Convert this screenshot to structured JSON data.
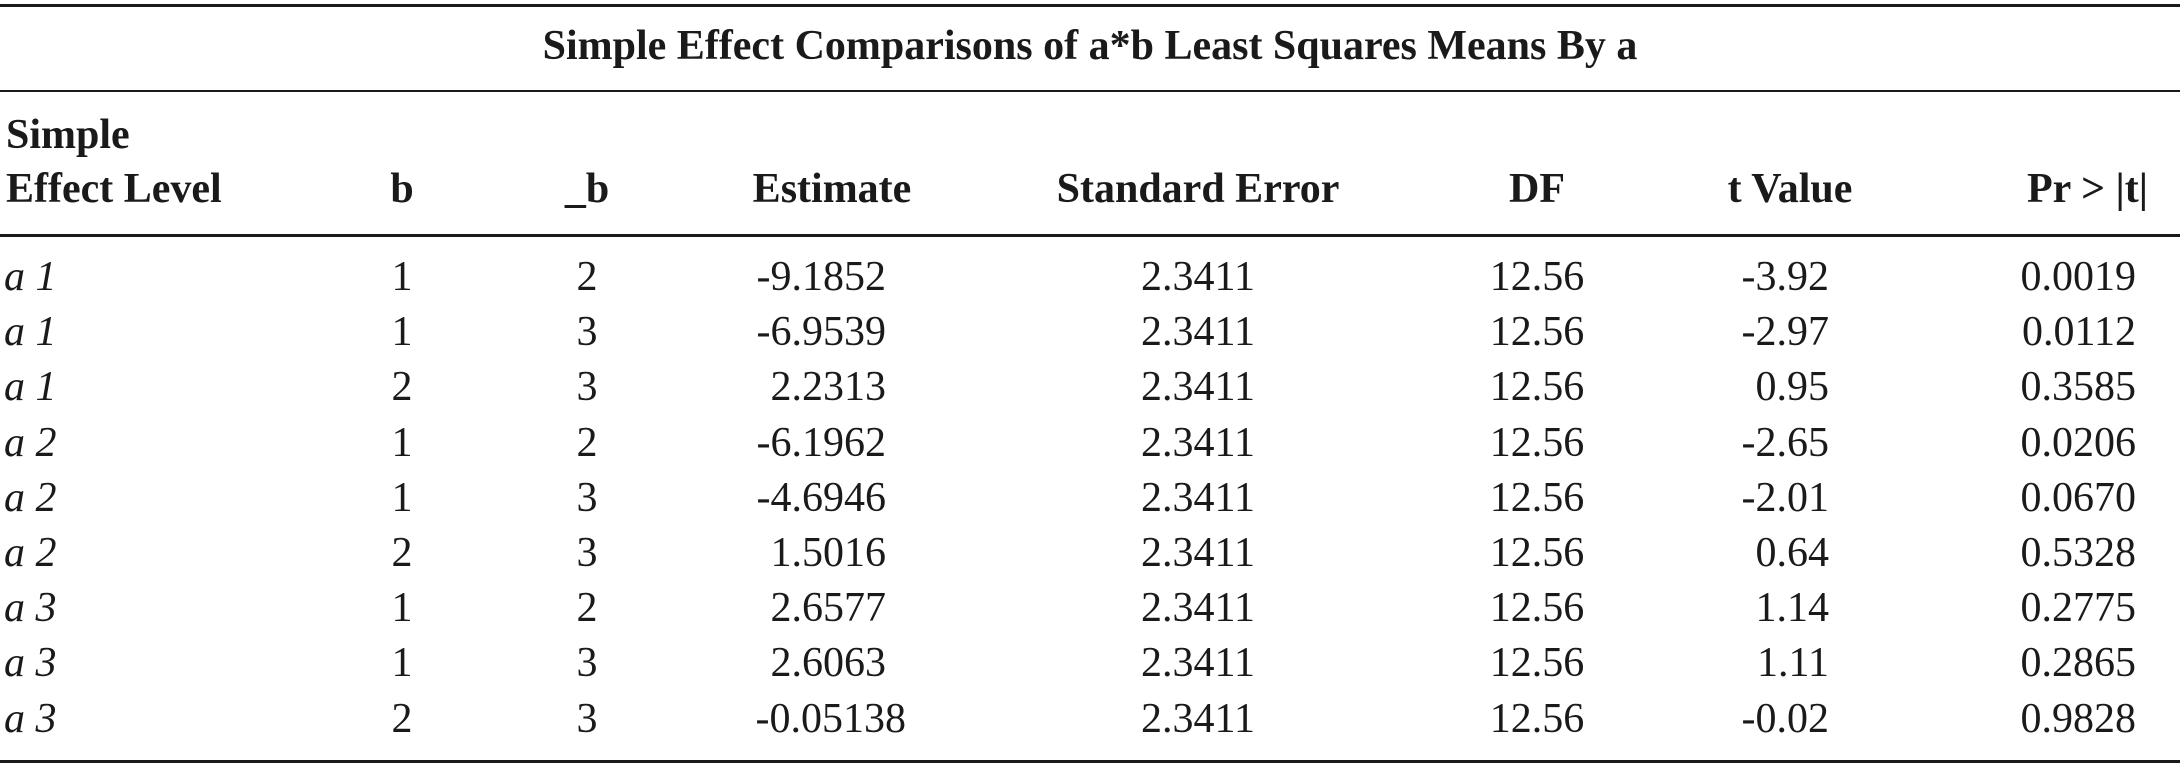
{
  "table": {
    "title": "Simple Effect Comparisons of a*b Least Squares Means By a",
    "headers": {
      "level_line1": "Simple",
      "level_line2": "Effect Level",
      "b": "b",
      "b2": "_b",
      "estimate": "Estimate",
      "stderr": "Standard Error",
      "df": "DF",
      "tvalue": "t Value",
      "pr": "Pr > |t|"
    },
    "rows": [
      {
        "level": "a 1",
        "b": "1",
        "b2": "2",
        "estimate": "-9.1852",
        "stderr": "2.3411",
        "df": "12.56",
        "tvalue": "-3.92",
        "pr": "0.0019"
      },
      {
        "level": "a 1",
        "b": "1",
        "b2": "3",
        "estimate": "-6.9539",
        "stderr": "2.3411",
        "df": "12.56",
        "tvalue": "-2.97",
        "pr": "0.0112"
      },
      {
        "level": "a 1",
        "b": "2",
        "b2": "3",
        "estimate": "2.2313",
        "stderr": "2.3411",
        "df": "12.56",
        "tvalue": "0.95",
        "pr": "0.3585"
      },
      {
        "level": "a 2",
        "b": "1",
        "b2": "2",
        "estimate": "-6.1962",
        "stderr": "2.3411",
        "df": "12.56",
        "tvalue": "-2.65",
        "pr": "0.0206"
      },
      {
        "level": "a 2",
        "b": "1",
        "b2": "3",
        "estimate": "-4.6946",
        "stderr": "2.3411",
        "df": "12.56",
        "tvalue": "-2.01",
        "pr": "0.0670"
      },
      {
        "level": "a 2",
        "b": "2",
        "b2": "3",
        "estimate": "1.5016",
        "stderr": "2.3411",
        "df": "12.56",
        "tvalue": "0.64",
        "pr": "0.5328"
      },
      {
        "level": "a 3",
        "b": "1",
        "b2": "2",
        "estimate": "2.6577",
        "stderr": "2.3411",
        "df": "12.56",
        "tvalue": "1.14",
        "pr": "0.2775"
      },
      {
        "level": "a 3",
        "b": "1",
        "b2": "3",
        "estimate": "2.6063",
        "stderr": "2.3411",
        "df": "12.56",
        "tvalue": "1.11",
        "pr": "0.2865"
      },
      {
        "level": "a 3",
        "b": "2",
        "b2": "3",
        "estimate": "-0.05138",
        "stderr": "2.3411",
        "df": "12.56",
        "tvalue": "-0.02",
        "pr": "0.9828"
      }
    ]
  }
}
